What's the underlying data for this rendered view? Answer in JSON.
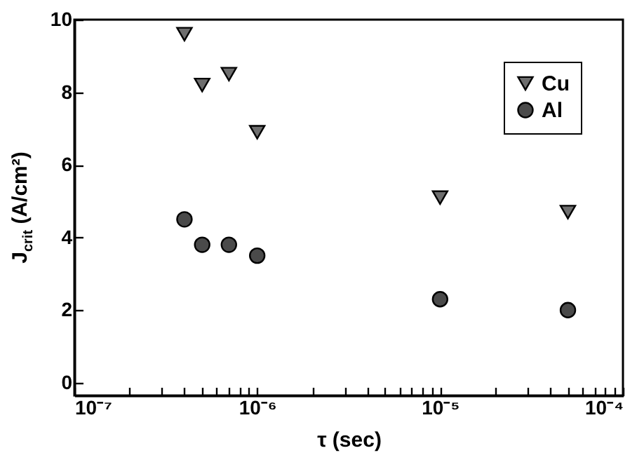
{
  "chart_data": {
    "type": "scatter",
    "xlabel": "τ (sec)",
    "ylabel": "J$_{crit}$ (A/cm²)",
    "log": "x",
    "legend": "top right",
    "grid": false,
    "xlim": [
      1e-07,
      0.0001
    ],
    "ylim": [
      -0.35,
      10
    ],
    "xticks": [
      {
        "value": 1e-07,
        "label": "10⁻⁷"
      },
      {
        "value": 2e-07,
        "label": null
      },
      {
        "value": 3e-07,
        "label": null
      },
      {
        "value": 4e-07,
        "label": null
      },
      {
        "value": 5e-07,
        "label": null
      },
      {
        "value": 6e-07,
        "label": null
      },
      {
        "value": 7e-07,
        "label": null
      },
      {
        "value": 8e-07,
        "label": null
      },
      {
        "value": 9e-07,
        "label": null
      },
      {
        "value": 1e-06,
        "label": "10⁻⁶"
      },
      {
        "value": 2e-06,
        "label": null
      },
      {
        "value": 3e-06,
        "label": null
      },
      {
        "value": 4e-06,
        "label": null
      },
      {
        "value": 5e-06,
        "label": null
      },
      {
        "value": 6e-06,
        "label": null
      },
      {
        "value": 7e-06,
        "label": null
      },
      {
        "value": 8e-06,
        "label": null
      },
      {
        "value": 9e-06,
        "label": null
      },
      {
        "value": 1e-05,
        "label": "10⁻⁵"
      },
      {
        "value": 2e-05,
        "label": null
      },
      {
        "value": 3e-05,
        "label": null
      },
      {
        "value": 4e-05,
        "label": null
      },
      {
        "value": 5e-05,
        "label": null
      },
      {
        "value": 6e-05,
        "label": null
      },
      {
        "value": 7e-05,
        "label": null
      },
      {
        "value": 8e-05,
        "label": null
      },
      {
        "value": 9e-05,
        "label": null
      },
      {
        "value": 0.0001,
        "label": "10⁻⁴"
      }
    ],
    "yticks": [
      0,
      2,
      4,
      6,
      8,
      10
    ],
    "series": [
      {
        "name": "Cu",
        "color": "#6e6e6e",
        "marker": "triangle",
        "x": [
          4e-07,
          5e-07,
          7e-07,
          1e-06,
          1e-05,
          5e-05
        ],
        "values": [
          9.6,
          8.2,
          8.5,
          6.9,
          5.1,
          4.7
        ]
      },
      {
        "name": "Al",
        "color": "#4a4a4a",
        "marker": "circle",
        "x": [
          4e-07,
          5e-07,
          7e-07,
          1e-06,
          1e-05,
          5e-05
        ],
        "values": [
          4.5,
          3.8,
          3.8,
          3.5,
          2.3,
          2.0
        ]
      }
    ]
  }
}
